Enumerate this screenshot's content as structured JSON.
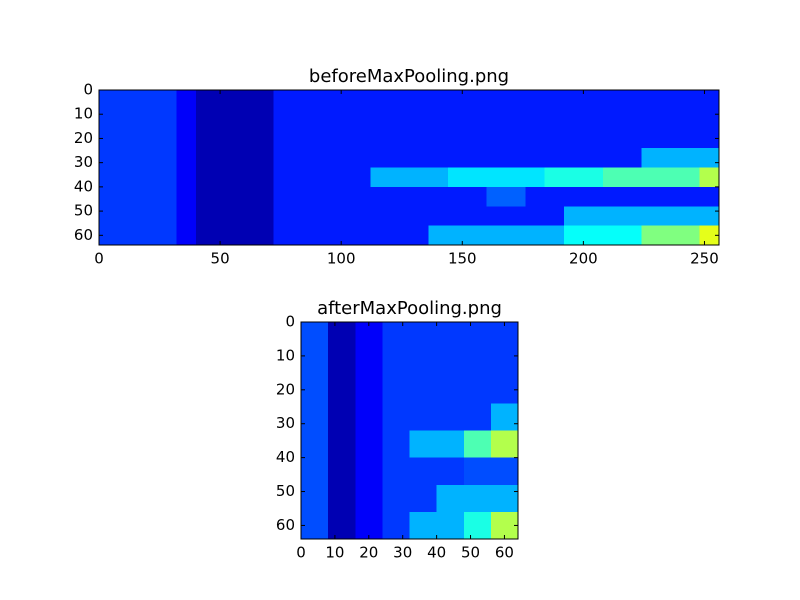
{
  "chart_data": [
    {
      "type": "heatmap",
      "title": "beforeMaxPooling.png",
      "colormap": "jet",
      "xlim": [
        0,
        256
      ],
      "ylim": [
        64,
        0
      ],
      "xticks": [
        0,
        50,
        100,
        150,
        200,
        250
      ],
      "yticks": [
        0,
        10,
        20,
        30,
        40,
        50,
        60
      ],
      "values": [
        [
          0.18,
          0.18,
          0.18,
          0.18,
          0.12,
          0.05,
          0.05,
          0.05,
          0.05,
          0.15,
          0.15,
          0.15,
          0.15,
          0.15,
          0.15,
          0.15,
          0.15,
          0.15,
          0.15,
          0.15,
          0.15,
          0.15,
          0.15,
          0.15,
          0.15,
          0.15,
          0.15,
          0.15,
          0.15,
          0.15,
          0.15,
          0.15
        ],
        [
          0.18,
          0.18,
          0.18,
          0.18,
          0.12,
          0.05,
          0.05,
          0.05,
          0.05,
          0.15,
          0.15,
          0.15,
          0.15,
          0.15,
          0.15,
          0.15,
          0.15,
          0.15,
          0.15,
          0.15,
          0.15,
          0.15,
          0.15,
          0.15,
          0.15,
          0.15,
          0.15,
          0.15,
          0.15,
          0.15,
          0.15,
          0.15
        ],
        [
          0.18,
          0.18,
          0.18,
          0.18,
          0.12,
          0.05,
          0.05,
          0.05,
          0.05,
          0.15,
          0.15,
          0.15,
          0.15,
          0.15,
          0.15,
          0.15,
          0.15,
          0.15,
          0.15,
          0.15,
          0.15,
          0.15,
          0.15,
          0.15,
          0.15,
          0.15,
          0.15,
          0.15,
          0.15,
          0.15,
          0.15,
          0.15
        ],
        [
          0.18,
          0.18,
          0.18,
          0.18,
          0.12,
          0.05,
          0.05,
          0.05,
          0.05,
          0.15,
          0.15,
          0.15,
          0.15,
          0.15,
          0.15,
          0.15,
          0.15,
          0.15,
          0.15,
          0.15,
          0.15,
          0.15,
          0.15,
          0.15,
          0.15,
          0.15,
          0.15,
          0.15,
          0.3,
          0.3,
          0.3,
          0.3
        ],
        [
          0.18,
          0.18,
          0.18,
          0.18,
          0.12,
          0.05,
          0.05,
          0.05,
          0.05,
          0.15,
          0.15,
          0.15,
          0.15,
          0.15,
          0.3,
          0.3,
          0.3,
          0.3,
          0.35,
          0.35,
          0.35,
          0.35,
          0.35,
          0.4,
          0.4,
          0.4,
          0.45,
          0.45,
          0.45,
          0.45,
          0.45,
          0.55
        ],
        [
          0.18,
          0.18,
          0.18,
          0.18,
          0.12,
          0.05,
          0.05,
          0.05,
          0.05,
          0.15,
          0.15,
          0.15,
          0.15,
          0.15,
          0.15,
          0.15,
          0.15,
          0.15,
          0.15,
          0.15,
          0.22,
          0.22,
          0.15,
          0.15,
          0.15,
          0.15,
          0.15,
          0.15,
          0.15,
          0.15,
          0.15,
          0.15
        ],
        [
          0.18,
          0.18,
          0.18,
          0.18,
          0.12,
          0.05,
          0.05,
          0.05,
          0.05,
          0.15,
          0.15,
          0.15,
          0.15,
          0.15,
          0.15,
          0.15,
          0.15,
          0.15,
          0.15,
          0.15,
          0.15,
          0.15,
          0.15,
          0.15,
          0.3,
          0.3,
          0.3,
          0.3,
          0.3,
          0.3,
          0.3,
          0.3
        ],
        [
          0.18,
          0.18,
          0.18,
          0.18,
          0.12,
          0.05,
          0.05,
          0.05,
          0.05,
          0.15,
          0.15,
          0.15,
          0.15,
          0.15,
          0.15,
          0.15,
          0.15,
          0.3,
          0.3,
          0.3,
          0.3,
          0.3,
          0.3,
          0.3,
          0.38,
          0.38,
          0.38,
          0.38,
          0.5,
          0.5,
          0.5,
          0.6
        ]
      ]
    },
    {
      "type": "heatmap",
      "title": "afterMaxPooling.png",
      "colormap": "jet",
      "xlim": [
        0,
        64
      ],
      "ylim": [
        64,
        0
      ],
      "xticks": [
        0,
        10,
        20,
        30,
        40,
        50,
        60
      ],
      "yticks": [
        0,
        10,
        20,
        30,
        40,
        50,
        60
      ],
      "values": [
        [
          0.2,
          0.05,
          0.12,
          0.18,
          0.18,
          0.18,
          0.18,
          0.18
        ],
        [
          0.2,
          0.05,
          0.12,
          0.18,
          0.18,
          0.18,
          0.18,
          0.18
        ],
        [
          0.2,
          0.05,
          0.12,
          0.18,
          0.18,
          0.18,
          0.18,
          0.18
        ],
        [
          0.2,
          0.05,
          0.12,
          0.18,
          0.18,
          0.18,
          0.18,
          0.3
        ],
        [
          0.2,
          0.05,
          0.12,
          0.18,
          0.3,
          0.3,
          0.45,
          0.55
        ],
        [
          0.2,
          0.05,
          0.12,
          0.18,
          0.18,
          0.18,
          0.2,
          0.2
        ],
        [
          0.2,
          0.05,
          0.12,
          0.18,
          0.18,
          0.3,
          0.3,
          0.3
        ],
        [
          0.2,
          0.05,
          0.12,
          0.18,
          0.3,
          0.3,
          0.4,
          0.55
        ]
      ]
    }
  ]
}
